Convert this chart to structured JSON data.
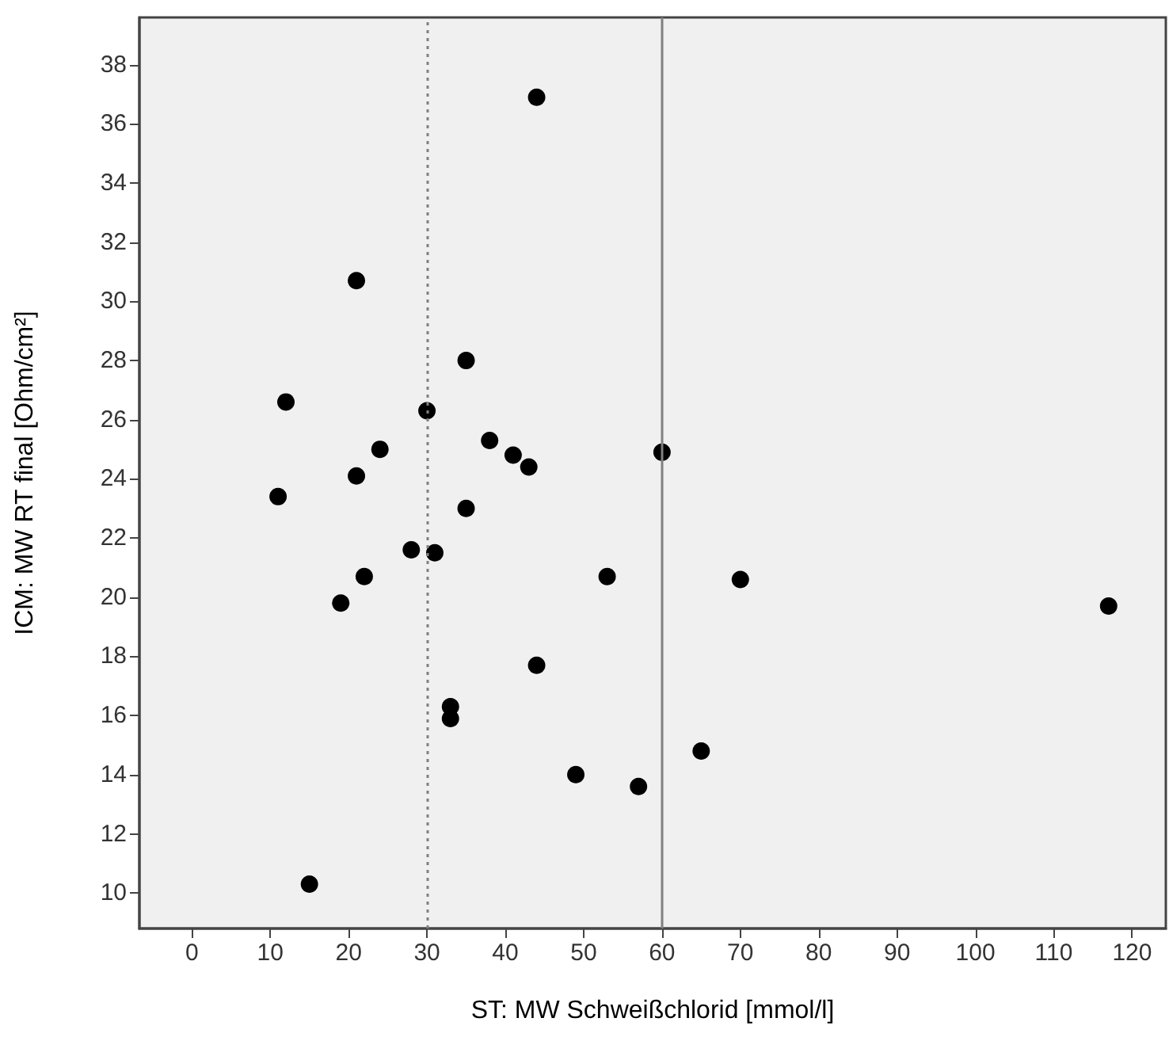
{
  "chart_data": {
    "type": "scatter",
    "xlabel": "ST: MW Schweißchlorid [mmol/l]",
    "ylabel": "ICM: MW RT final [Ohm/cm²]",
    "x": [
      44,
      21,
      35,
      12,
      30,
      38,
      24,
      41,
      43,
      21,
      11,
      35,
      28,
      31,
      22,
      19,
      44,
      33,
      33,
      15,
      60,
      53,
      70,
      117,
      65,
      49,
      57
    ],
    "series": [
      {
        "color": "#000000",
        "values": [
          36.9,
          30.7,
          28.0,
          26.6,
          26.3,
          25.3,
          25.0,
          24.8,
          24.4,
          24.1,
          23.4,
          23.0,
          21.6,
          21.5,
          20.7,
          19.8,
          17.7,
          16.3,
          15.9,
          10.3,
          24.9,
          20.7,
          20.6,
          19.7,
          14.8,
          14.0,
          13.6
        ]
      }
    ],
    "xlim": [
      -6.7,
      124.3
    ],
    "ylim": [
      8.8,
      39.6
    ],
    "xticks": [
      0,
      10,
      20,
      30,
      40,
      50,
      60,
      70,
      80,
      90,
      100,
      110,
      120
    ],
    "yticks": [
      10,
      12,
      14,
      16,
      18,
      20,
      22,
      24,
      26,
      28,
      30,
      32,
      34,
      36,
      38
    ],
    "ref_lines": [
      {
        "axis": "x",
        "value": 30,
        "line_style": "dotted",
        "color": "#808080"
      },
      {
        "axis": "x",
        "value": 60,
        "line_style": "solid",
        "color": "#808080"
      }
    ],
    "marker": "circle",
    "grid": false
  }
}
